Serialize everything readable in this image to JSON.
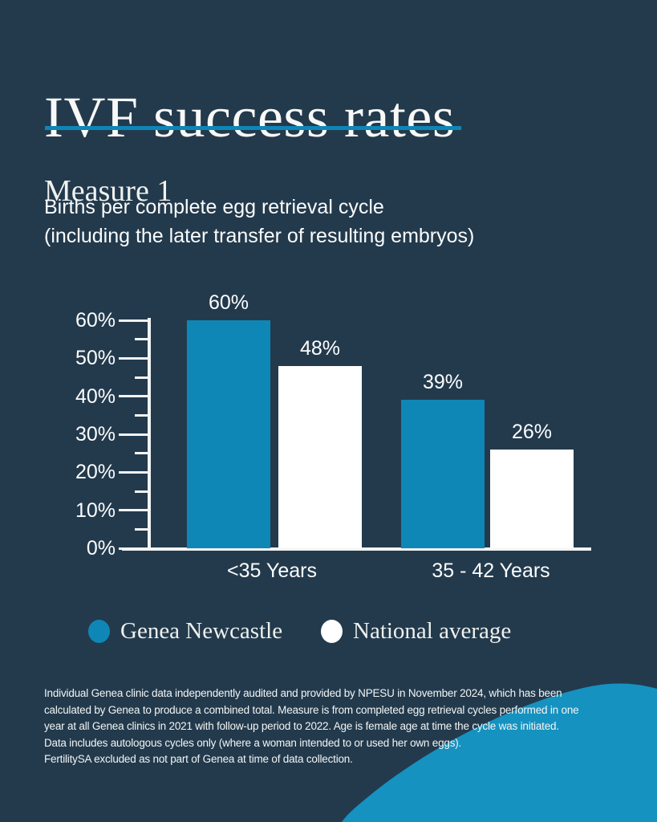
{
  "header": {
    "title": "IVF success rates",
    "section": "Measure 1",
    "subtitle_lines": [
      "Births per complete egg retrieval cycle",
      "(including the later transfer of resulting embryos)"
    ]
  },
  "chart_data": {
    "type": "bar",
    "title": "IVF success rates - Measure 1",
    "subtitle": "Births per complete egg retrieval cycle (including the later transfer of resulting embryos)",
    "categories": [
      "<35 Years",
      "35 - 42 Years"
    ],
    "series": [
      {
        "name": "Genea Newcastle",
        "values": [
          60,
          39
        ],
        "value_labels": [
          "60%",
          "39%"
        ],
        "color": "#0e87b6"
      },
      {
        "name": "National average",
        "values": [
          48,
          26
        ],
        "value_labels": [
          "48%",
          "26%"
        ],
        "color": "#ffffff"
      }
    ],
    "y_axis": {
      "min": 0,
      "max": 60,
      "major_tick_step": 10,
      "minor_tick_step": 5,
      "tick_labels": [
        "0%",
        "10%",
        "20%",
        "30%",
        "40%",
        "50%",
        "60%"
      ]
    },
    "xlabel": "",
    "ylabel": "",
    "grid": false,
    "legend_position": "bottom"
  },
  "legend": {
    "items": [
      {
        "label": "Genea Newcastle",
        "color": "#0e87b6"
      },
      {
        "label": "National average",
        "color": "#ffffff"
      }
    ]
  },
  "footnote": {
    "lines": [
      "Individual Genea clinic data independently audited and provided by NPESU in November 2024, which has been",
      "calculated by Genea to produce a combined total. Measure is from completed egg retrieval cycles performed in one",
      "year at all Genea clinics in 2021 with follow-up period to 2022. Age is female age at time the cycle was initiated.",
      "Data includes autologous cycles only (where a woman intended to or used her own eggs).",
      "FertilitySA excluded as not part of Genea at time of data collection."
    ]
  },
  "colors": {
    "background": "#233a4d",
    "accent_teal": "#0e87b6",
    "wave_teal": "#1592c0",
    "bar_white": "#ffffff",
    "axis_white": "#f2f4f5"
  }
}
